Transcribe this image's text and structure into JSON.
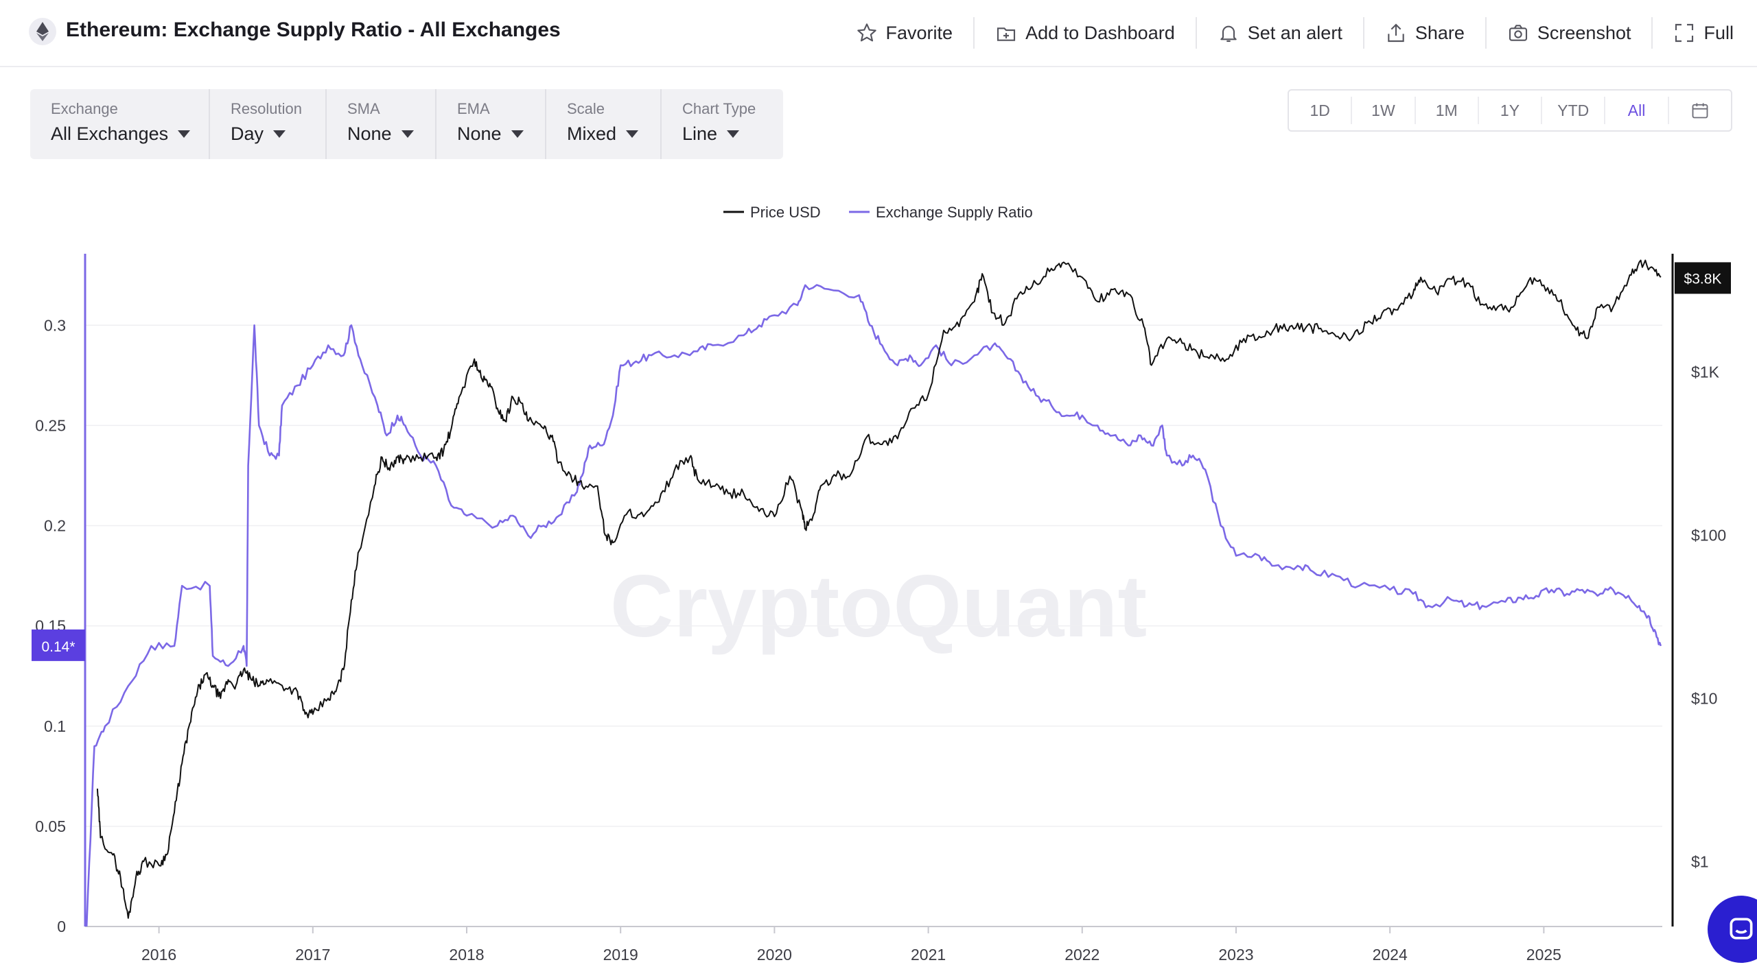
{
  "header": {
    "title": "Ethereum: Exchange Supply Ratio - All Exchanges",
    "actions": {
      "favorite": "Favorite",
      "add_to_dashboard": "Add to Dashboard",
      "set_alert": "Set an alert",
      "share": "Share",
      "screenshot": "Screenshot",
      "full": "Full"
    }
  },
  "controls": [
    {
      "label": "Exchange",
      "value": "All Exchanges"
    },
    {
      "label": "Resolution",
      "value": "Day"
    },
    {
      "label": "SMA",
      "value": "None"
    },
    {
      "label": "EMA",
      "value": "None"
    },
    {
      "label": "Scale",
      "value": "Mixed"
    },
    {
      "label": "Chart Type",
      "value": "Line"
    }
  ],
  "ranges": {
    "items": [
      "1D",
      "1W",
      "1M",
      "1Y",
      "YTD",
      "All"
    ],
    "active": "All"
  },
  "colors": {
    "price": "#111111",
    "ratio": "#7b68e6",
    "badge_ratio": "#5b3fe0",
    "badge_price": "#111111",
    "active": "#6b4fe0"
  },
  "chart_data": {
    "type": "line",
    "legend": [
      "Price USD",
      "Exchange Supply Ratio"
    ],
    "legend_position": "top-center",
    "watermark": "CryptoQuant",
    "grid": "horizontal",
    "x_ticks": [
      "2016",
      "2017",
      "2018",
      "2019",
      "2020",
      "2021",
      "2022",
      "2023",
      "2024",
      "2025"
    ],
    "x_range": [
      2015.52,
      2025.77
    ],
    "left_axis": {
      "scale": "linear",
      "ylim": [
        0,
        0.335
      ],
      "ticks": [
        "0",
        "0.05",
        "0.1",
        "0.15",
        "0.2",
        "0.25",
        "0.3"
      ]
    },
    "right_axis": {
      "scale": "log",
      "ylim": [
        0.4,
        5200
      ],
      "ticks": [
        "$1",
        "$10",
        "$100",
        "$1K"
      ]
    },
    "current_badges": {
      "ratio": "0.14*",
      "price": "$3.8K"
    },
    "series": [
      {
        "name": "Exchange Supply Ratio",
        "axis": "left",
        "points": [
          [
            2015.53,
            0.0
          ],
          [
            2015.58,
            0.09
          ],
          [
            2015.65,
            0.1
          ],
          [
            2015.8,
            0.12
          ],
          [
            2015.95,
            0.14
          ],
          [
            2016.1,
            0.14
          ],
          [
            2016.15,
            0.17
          ],
          [
            2016.33,
            0.17
          ],
          [
            2016.35,
            0.135
          ],
          [
            2016.45,
            0.13
          ],
          [
            2016.55,
            0.14
          ],
          [
            2016.57,
            0.13
          ],
          [
            2016.58,
            0.23
          ],
          [
            2016.62,
            0.3
          ],
          [
            2016.65,
            0.25
          ],
          [
            2016.72,
            0.235
          ],
          [
            2016.78,
            0.235
          ],
          [
            2016.8,
            0.26
          ],
          [
            2016.9,
            0.27
          ],
          [
            2017.0,
            0.28
          ],
          [
            2017.1,
            0.29
          ],
          [
            2017.2,
            0.285
          ],
          [
            2017.25,
            0.3
          ],
          [
            2017.32,
            0.28
          ],
          [
            2017.42,
            0.26
          ],
          [
            2017.48,
            0.245
          ],
          [
            2017.55,
            0.255
          ],
          [
            2017.6,
            0.25
          ],
          [
            2017.7,
            0.235
          ],
          [
            2017.8,
            0.23
          ],
          [
            2017.9,
            0.21
          ],
          [
            2018.0,
            0.205
          ],
          [
            2018.2,
            0.2
          ],
          [
            2018.3,
            0.205
          ],
          [
            2018.4,
            0.195
          ],
          [
            2018.5,
            0.2
          ],
          [
            2018.6,
            0.205
          ],
          [
            2018.7,
            0.215
          ],
          [
            2018.75,
            0.225
          ],
          [
            2018.8,
            0.24
          ],
          [
            2018.88,
            0.24
          ],
          [
            2018.95,
            0.255
          ],
          [
            2019.0,
            0.28
          ],
          [
            2019.1,
            0.282
          ],
          [
            2019.2,
            0.285
          ],
          [
            2019.35,
            0.285
          ],
          [
            2019.5,
            0.287
          ],
          [
            2019.6,
            0.29
          ],
          [
            2019.8,
            0.295
          ],
          [
            2019.9,
            0.3
          ],
          [
            2020.0,
            0.305
          ],
          [
            2020.15,
            0.31
          ],
          [
            2020.2,
            0.32
          ],
          [
            2020.35,
            0.318
          ],
          [
            2020.55,
            0.315
          ],
          [
            2020.62,
            0.3
          ],
          [
            2020.7,
            0.29
          ],
          [
            2020.8,
            0.28
          ],
          [
            2020.88,
            0.285
          ],
          [
            2020.95,
            0.28
          ],
          [
            2021.05,
            0.29
          ],
          [
            2021.15,
            0.28
          ],
          [
            2021.3,
            0.285
          ],
          [
            2021.42,
            0.29
          ],
          [
            2021.5,
            0.285
          ],
          [
            2021.6,
            0.275
          ],
          [
            2021.7,
            0.265
          ],
          [
            2021.8,
            0.26
          ],
          [
            2021.9,
            0.255
          ],
          [
            2022.0,
            0.255
          ],
          [
            2022.1,
            0.25
          ],
          [
            2022.2,
            0.245
          ],
          [
            2022.3,
            0.24
          ],
          [
            2022.38,
            0.245
          ],
          [
            2022.45,
            0.24
          ],
          [
            2022.52,
            0.25
          ],
          [
            2022.55,
            0.235
          ],
          [
            2022.65,
            0.23
          ],
          [
            2022.72,
            0.235
          ],
          [
            2022.8,
            0.228
          ],
          [
            2022.9,
            0.2
          ],
          [
            2023.0,
            0.185
          ],
          [
            2023.15,
            0.185
          ],
          [
            2023.25,
            0.18
          ],
          [
            2023.4,
            0.18
          ],
          [
            2023.5,
            0.177
          ],
          [
            2023.65,
            0.175
          ],
          [
            2023.8,
            0.17
          ],
          [
            2024.0,
            0.168
          ],
          [
            2024.15,
            0.166
          ],
          [
            2024.25,
            0.16
          ],
          [
            2024.4,
            0.163
          ],
          [
            2024.5,
            0.16
          ],
          [
            2024.6,
            0.16
          ],
          [
            2024.75,
            0.162
          ],
          [
            2024.85,
            0.164
          ],
          [
            2024.95,
            0.165
          ],
          [
            2025.05,
            0.168
          ],
          [
            2025.15,
            0.166
          ],
          [
            2025.25,
            0.168
          ],
          [
            2025.35,
            0.165
          ],
          [
            2025.45,
            0.168
          ],
          [
            2025.55,
            0.165
          ],
          [
            2025.62,
            0.16
          ],
          [
            2025.68,
            0.155
          ],
          [
            2025.72,
            0.148
          ],
          [
            2025.76,
            0.14
          ]
        ]
      },
      {
        "name": "Price USD",
        "axis": "right",
        "points": [
          [
            2015.6,
            2.8
          ],
          [
            2015.62,
            1.4
          ],
          [
            2015.7,
            1.1
          ],
          [
            2015.75,
            0.8
          ],
          [
            2015.8,
            0.45
          ],
          [
            2015.85,
            0.8
          ],
          [
            2015.9,
            1.0
          ],
          [
            2016.0,
            0.95
          ],
          [
            2016.05,
            1.1
          ],
          [
            2016.1,
            2.0
          ],
          [
            2016.15,
            4.0
          ],
          [
            2016.2,
            7.0
          ],
          [
            2016.25,
            11
          ],
          [
            2016.3,
            14
          ],
          [
            2016.35,
            12
          ],
          [
            2016.4,
            10
          ],
          [
            2016.45,
            13
          ],
          [
            2016.5,
            12
          ],
          [
            2016.55,
            15
          ],
          [
            2016.6,
            13
          ],
          [
            2016.65,
            12
          ],
          [
            2016.7,
            13
          ],
          [
            2016.8,
            12
          ],
          [
            2016.9,
            11
          ],
          [
            2016.95,
            8
          ],
          [
            2017.0,
            8
          ],
          [
            2017.1,
            10
          ],
          [
            2017.15,
            11
          ],
          [
            2017.2,
            15
          ],
          [
            2017.25,
            40
          ],
          [
            2017.3,
            80
          ],
          [
            2017.4,
            200
          ],
          [
            2017.45,
            300
          ],
          [
            2017.5,
            250
          ],
          [
            2017.55,
            300
          ],
          [
            2017.6,
            290
          ],
          [
            2017.7,
            300
          ],
          [
            2017.8,
            300
          ],
          [
            2017.85,
            330
          ],
          [
            2017.9,
            450
          ],
          [
            2017.95,
            700
          ],
          [
            2018.05,
            1200
          ],
          [
            2018.1,
            900
          ],
          [
            2018.15,
            850
          ],
          [
            2018.2,
            600
          ],
          [
            2018.25,
            500
          ],
          [
            2018.3,
            700
          ],
          [
            2018.35,
            650
          ],
          [
            2018.4,
            500
          ],
          [
            2018.5,
            450
          ],
          [
            2018.55,
            400
          ],
          [
            2018.6,
            280
          ],
          [
            2018.7,
            220
          ],
          [
            2018.75,
            200
          ],
          [
            2018.85,
            200
          ],
          [
            2018.9,
            100
          ],
          [
            2018.95,
            90
          ],
          [
            2019.05,
            140
          ],
          [
            2019.15,
            130
          ],
          [
            2019.25,
            160
          ],
          [
            2019.35,
            250
          ],
          [
            2019.45,
            300
          ],
          [
            2019.5,
            220
          ],
          [
            2019.6,
            200
          ],
          [
            2019.7,
            180
          ],
          [
            2019.8,
            180
          ],
          [
            2019.9,
            140
          ],
          [
            2020.0,
            130
          ],
          [
            2020.1,
            230
          ],
          [
            2020.18,
            140
          ],
          [
            2020.2,
            110
          ],
          [
            2020.25,
            130
          ],
          [
            2020.3,
            200
          ],
          [
            2020.4,
            230
          ],
          [
            2020.5,
            240
          ],
          [
            2020.6,
            400
          ],
          [
            2020.7,
            360
          ],
          [
            2020.8,
            390
          ],
          [
            2020.9,
            600
          ],
          [
            2021.0,
            730
          ],
          [
            2021.1,
            1800
          ],
          [
            2021.2,
            1900
          ],
          [
            2021.3,
            2700
          ],
          [
            2021.35,
            4000
          ],
          [
            2021.42,
            2300
          ],
          [
            2021.5,
            2000
          ],
          [
            2021.6,
            3100
          ],
          [
            2021.7,
            3500
          ],
          [
            2021.8,
            4300
          ],
          [
            2021.88,
            4700
          ],
          [
            2022.0,
            3800
          ],
          [
            2022.1,
            2700
          ],
          [
            2022.2,
            3200
          ],
          [
            2022.3,
            3000
          ],
          [
            2022.4,
            1900
          ],
          [
            2022.45,
            1100
          ],
          [
            2022.55,
            1600
          ],
          [
            2022.65,
            1500
          ],
          [
            2022.75,
            1300
          ],
          [
            2022.85,
            1250
          ],
          [
            2022.95,
            1200
          ],
          [
            2023.05,
            1600
          ],
          [
            2023.15,
            1650
          ],
          [
            2023.25,
            1850
          ],
          [
            2023.35,
            1900
          ],
          [
            2023.45,
            1850
          ],
          [
            2023.55,
            1850
          ],
          [
            2023.65,
            1650
          ],
          [
            2023.75,
            1600
          ],
          [
            2023.85,
            2000
          ],
          [
            2023.95,
            2300
          ],
          [
            2024.05,
            2400
          ],
          [
            2024.15,
            3000
          ],
          [
            2024.2,
            3800
          ],
          [
            2024.3,
            3100
          ],
          [
            2024.4,
            3700
          ],
          [
            2024.5,
            3500
          ],
          [
            2024.6,
            2600
          ],
          [
            2024.7,
            2500
          ],
          [
            2024.8,
            2500
          ],
          [
            2024.9,
            3600
          ],
          [
            2025.0,
            3400
          ],
          [
            2025.1,
            2700
          ],
          [
            2025.2,
            1900
          ],
          [
            2025.28,
            1600
          ],
          [
            2025.35,
            2500
          ],
          [
            2025.45,
            2500
          ],
          [
            2025.55,
            3700
          ],
          [
            2025.62,
            4700
          ],
          [
            2025.7,
            4400
          ],
          [
            2025.76,
            3800
          ]
        ]
      }
    ]
  }
}
